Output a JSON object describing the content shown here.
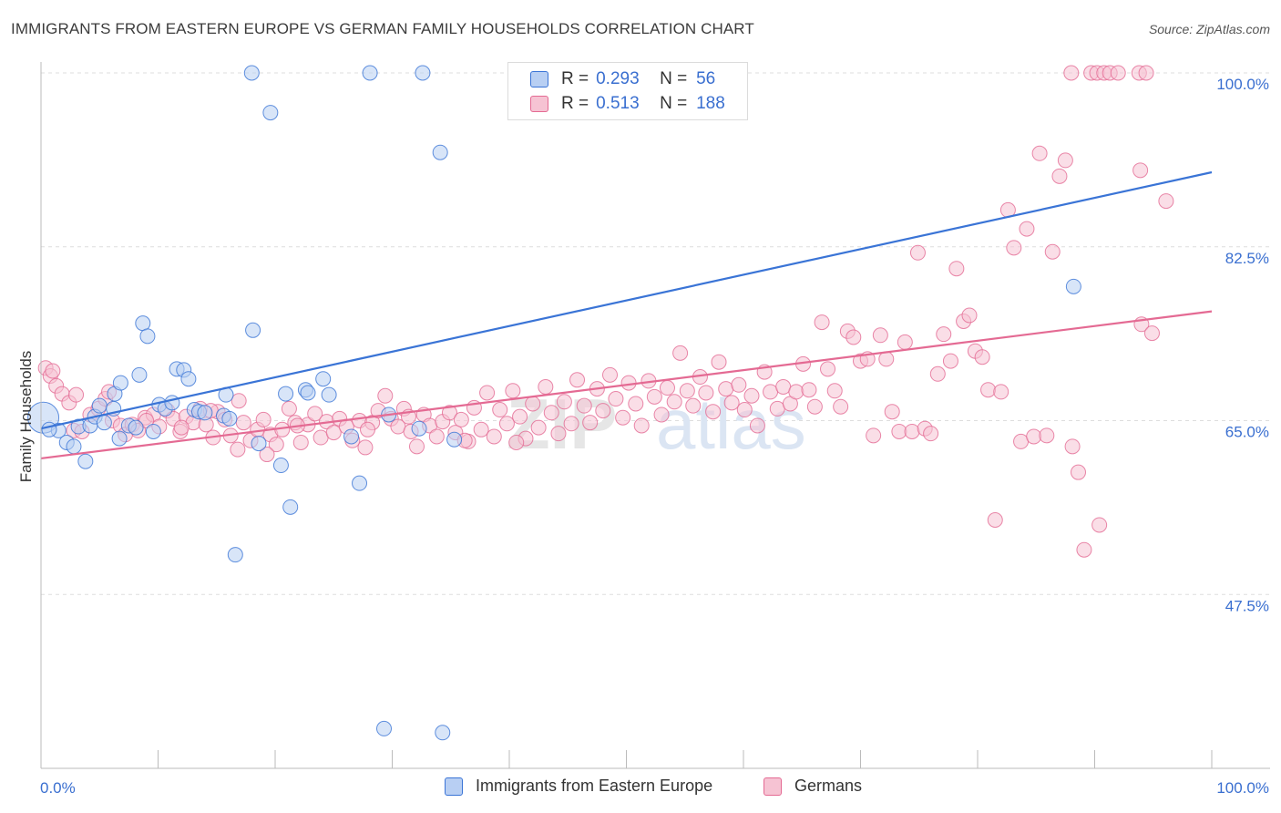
{
  "title": "IMMIGRANTS FROM EASTERN EUROPE VS GERMAN FAMILY HOUSEHOLDS CORRELATION CHART",
  "source": "Source: ZipAtlas.com",
  "colors": {
    "blue": "#3a74d6",
    "pink": "#e46a93",
    "blue_fill": "#b8cff3",
    "pink_fill": "#f6c3d3",
    "tick_label": "#3a6fd0"
  },
  "legend_top": {
    "rows": [
      {
        "r_label": "R =",
        "r_value": "0.293",
        "n_label": "N =",
        "n_value": "56"
      },
      {
        "r_label": "R =",
        "r_value": "0.513",
        "n_label": "N =",
        "n_value": "188"
      }
    ]
  },
  "legend_bottom": [
    "Immigrants from Eastern Europe",
    "Germans"
  ],
  "chart_data": {
    "type": "scatter",
    "title": "IMMIGRANTS FROM EASTERN EUROPE VS GERMAN FAMILY HOUSEHOLDS CORRELATION CHART",
    "xlabel": "",
    "ylabel": "Family Households",
    "xlim": [
      0,
      100
    ],
    "ylim": [
      30,
      102
    ],
    "x_tick_labels": [
      "0.0%",
      "100.0%"
    ],
    "y_ticks": [
      47.5,
      65.0,
      82.5,
      100.0
    ],
    "y_tick_labels": [
      "47.5%",
      "65.0%",
      "82.5%",
      "100.0%"
    ],
    "watermark": "ZIPatlas",
    "series": [
      {
        "name": "Immigrants from Eastern Europe",
        "r": 0.293,
        "n": 56,
        "trend": {
          "x": [
            0,
            100
          ],
          "y": [
            64.2,
            90.0
          ]
        },
        "points": [
          [
            0.2,
            65.3
          ],
          [
            1.5,
            64.0
          ],
          [
            2.2,
            62.8
          ],
          [
            2.8,
            62.4
          ],
          [
            3.2,
            64.4
          ],
          [
            3.8,
            60.9
          ],
          [
            4.2,
            64.5
          ],
          [
            4.6,
            65.4
          ],
          [
            5.0,
            66.5
          ],
          [
            5.4,
            64.8
          ],
          [
            6.2,
            66.2
          ],
          [
            6.3,
            67.7
          ],
          [
            6.7,
            63.2
          ],
          [
            6.8,
            68.8
          ],
          [
            7.5,
            64.5
          ],
          [
            8.1,
            64.3
          ],
          [
            8.4,
            69.6
          ],
          [
            8.7,
            74.8
          ],
          [
            9.1,
            73.5
          ],
          [
            9.6,
            63.9
          ],
          [
            10.1,
            66.6
          ],
          [
            10.6,
            66.2
          ],
          [
            11.2,
            66.8
          ],
          [
            11.6,
            70.2
          ],
          [
            12.2,
            70.1
          ],
          [
            12.6,
            69.2
          ],
          [
            13.1,
            66.1
          ],
          [
            13.5,
            65.9
          ],
          [
            14.0,
            65.8
          ],
          [
            15.6,
            65.5
          ],
          [
            15.8,
            67.6
          ],
          [
            16.1,
            65.2
          ],
          [
            16.6,
            51.5
          ],
          [
            18.0,
            100.0
          ],
          [
            18.1,
            74.1
          ],
          [
            18.6,
            62.7
          ],
          [
            19.6,
            96.0
          ],
          [
            20.5,
            60.5
          ],
          [
            20.9,
            67.7
          ],
          [
            21.3,
            56.3
          ],
          [
            22.6,
            68.1
          ],
          [
            22.8,
            67.8
          ],
          [
            24.1,
            69.2
          ],
          [
            24.6,
            67.6
          ],
          [
            26.5,
            63.4
          ],
          [
            27.2,
            58.7
          ],
          [
            28.1,
            100.0
          ],
          [
            29.3,
            34.0
          ],
          [
            29.7,
            65.6
          ],
          [
            32.6,
            100.0
          ],
          [
            32.3,
            64.2
          ],
          [
            34.1,
            92.0
          ],
          [
            34.3,
            33.6
          ],
          [
            35.3,
            63.1
          ],
          [
            88.2,
            78.5
          ],
          [
            0.7,
            64.1
          ]
        ]
      },
      {
        "name": "Germans",
        "r": 0.513,
        "n": 188,
        "trend": {
          "x": [
            0,
            100
          ],
          "y": [
            61.2,
            76.0
          ]
        },
        "points": [
          [
            0.4,
            70.3
          ],
          [
            0.8,
            69.5
          ],
          [
            1.3,
            68.5
          ],
          [
            1.8,
            67.7
          ],
          [
            2.4,
            66.8
          ],
          [
            2.8,
            64.0
          ],
          [
            3.5,
            63.9
          ],
          [
            4.2,
            65.6
          ],
          [
            4.9,
            66.2
          ],
          [
            5.5,
            67.2
          ],
          [
            6.1,
            65.0
          ],
          [
            6.8,
            64.5
          ],
          [
            7.2,
            63.6
          ],
          [
            7.8,
            64.6
          ],
          [
            8.3,
            64.0
          ],
          [
            8.9,
            65.3
          ],
          [
            9.6,
            65.6
          ],
          [
            10.1,
            64.4
          ],
          [
            10.8,
            66.0
          ],
          [
            11.3,
            65.2
          ],
          [
            11.9,
            63.9
          ],
          [
            12.4,
            65.4
          ],
          [
            13.0,
            64.8
          ],
          [
            13.6,
            66.2
          ],
          [
            14.1,
            64.6
          ],
          [
            14.7,
            63.3
          ],
          [
            15.1,
            65.9
          ],
          [
            15.7,
            65.1
          ],
          [
            16.2,
            63.5
          ],
          [
            16.8,
            62.1
          ],
          [
            17.3,
            64.8
          ],
          [
            17.9,
            63.0
          ],
          [
            18.5,
            64.1
          ],
          [
            19.0,
            65.1
          ],
          [
            19.6,
            63.6
          ],
          [
            20.1,
            62.6
          ],
          [
            20.6,
            64.1
          ],
          [
            21.2,
            66.2
          ],
          [
            21.7,
            64.8
          ],
          [
            22.2,
            62.8
          ],
          [
            22.8,
            64.6
          ],
          [
            23.4,
            65.7
          ],
          [
            23.9,
            63.3
          ],
          [
            24.4,
            64.9
          ],
          [
            25.0,
            63.8
          ],
          [
            25.5,
            65.2
          ],
          [
            26.1,
            64.4
          ],
          [
            26.6,
            63.0
          ],
          [
            27.2,
            65.0
          ],
          [
            27.7,
            62.3
          ],
          [
            28.3,
            64.8
          ],
          [
            28.8,
            66.0
          ],
          [
            29.4,
            67.5
          ],
          [
            29.9,
            65.2
          ],
          [
            30.5,
            64.4
          ],
          [
            31.0,
            66.2
          ],
          [
            31.6,
            63.9
          ],
          [
            32.1,
            62.4
          ],
          [
            32.7,
            65.6
          ],
          [
            33.2,
            64.5
          ],
          [
            33.8,
            63.4
          ],
          [
            34.3,
            64.9
          ],
          [
            34.9,
            65.8
          ],
          [
            35.4,
            63.8
          ],
          [
            35.9,
            65.1
          ],
          [
            36.5,
            62.9
          ],
          [
            37.0,
            66.3
          ],
          [
            37.6,
            64.1
          ],
          [
            38.1,
            67.8
          ],
          [
            38.7,
            63.4
          ],
          [
            39.2,
            66.1
          ],
          [
            39.8,
            64.7
          ],
          [
            40.3,
            68.0
          ],
          [
            40.9,
            65.4
          ],
          [
            41.4,
            63.2
          ],
          [
            42.0,
            66.7
          ],
          [
            42.5,
            64.3
          ],
          [
            43.1,
            68.4
          ],
          [
            43.6,
            65.8
          ],
          [
            44.2,
            63.7
          ],
          [
            44.7,
            66.9
          ],
          [
            45.3,
            64.7
          ],
          [
            45.8,
            69.1
          ],
          [
            46.4,
            66.5
          ],
          [
            46.9,
            64.8
          ],
          [
            47.5,
            68.2
          ],
          [
            48.0,
            66.0
          ],
          [
            48.6,
            69.6
          ],
          [
            49.1,
            67.2
          ],
          [
            49.7,
            65.3
          ],
          [
            50.2,
            68.8
          ],
          [
            50.8,
            66.7
          ],
          [
            51.3,
            64.5
          ],
          [
            51.9,
            69.0
          ],
          [
            52.4,
            67.4
          ],
          [
            53.0,
            65.6
          ],
          [
            53.5,
            68.3
          ],
          [
            54.1,
            66.9
          ],
          [
            54.6,
            71.8
          ],
          [
            55.2,
            68.0
          ],
          [
            55.7,
            66.5
          ],
          [
            56.3,
            69.4
          ],
          [
            56.8,
            67.8
          ],
          [
            57.4,
            65.9
          ],
          [
            57.9,
            70.9
          ],
          [
            58.5,
            68.2
          ],
          [
            59.0,
            66.8
          ],
          [
            59.6,
            68.6
          ],
          [
            60.1,
            66.1
          ],
          [
            60.7,
            67.5
          ],
          [
            61.2,
            64.5
          ],
          [
            61.8,
            69.9
          ],
          [
            62.3,
            67.9
          ],
          [
            62.9,
            66.2
          ],
          [
            63.4,
            68.4
          ],
          [
            64.0,
            66.7
          ],
          [
            64.5,
            67.9
          ],
          [
            65.1,
            70.7
          ],
          [
            65.6,
            68.1
          ],
          [
            66.1,
            66.4
          ],
          [
            66.7,
            74.9
          ],
          [
            67.2,
            70.2
          ],
          [
            67.8,
            68.0
          ],
          [
            68.3,
            66.4
          ],
          [
            68.9,
            74.0
          ],
          [
            69.4,
            73.4
          ],
          [
            70.0,
            71.0
          ],
          [
            70.6,
            71.2
          ],
          [
            71.1,
            63.5
          ],
          [
            71.7,
            73.6
          ],
          [
            72.2,
            71.2
          ],
          [
            72.7,
            65.9
          ],
          [
            73.3,
            63.9
          ],
          [
            73.8,
            72.9
          ],
          [
            74.4,
            63.9
          ],
          [
            74.9,
            81.9
          ],
          [
            75.5,
            64.2
          ],
          [
            76.0,
            63.7
          ],
          [
            76.6,
            69.7
          ],
          [
            77.1,
            73.7
          ],
          [
            77.7,
            71.0
          ],
          [
            78.2,
            80.3
          ],
          [
            78.8,
            75.0
          ],
          [
            79.3,
            75.6
          ],
          [
            79.8,
            72.0
          ],
          [
            80.4,
            71.4
          ],
          [
            80.9,
            68.1
          ],
          [
            81.5,
            55.0
          ],
          [
            82.0,
            67.9
          ],
          [
            82.6,
            86.2
          ],
          [
            83.1,
            82.4
          ],
          [
            83.7,
            62.9
          ],
          [
            84.2,
            84.3
          ],
          [
            84.8,
            63.4
          ],
          [
            85.3,
            91.9
          ],
          [
            85.9,
            63.5
          ],
          [
            86.4,
            82.0
          ],
          [
            87.0,
            89.6
          ],
          [
            87.5,
            91.2
          ],
          [
            88.0,
            100.0
          ],
          [
            88.6,
            59.8
          ],
          [
            89.1,
            52.0
          ],
          [
            89.7,
            100.0
          ],
          [
            90.2,
            100.0
          ],
          [
            90.8,
            100.0
          ],
          [
            91.3,
            100.0
          ],
          [
            92.0,
            100.0
          ],
          [
            93.8,
            100.0
          ],
          [
            94.4,
            100.0
          ],
          [
            94.0,
            74.7
          ],
          [
            94.9,
            73.8
          ],
          [
            93.9,
            90.2
          ],
          [
            96.1,
            87.1
          ],
          [
            1.0,
            70.0
          ],
          [
            3.0,
            67.6
          ],
          [
            5.8,
            67.9
          ],
          [
            9.0,
            65.0
          ],
          [
            12.0,
            64.3
          ],
          [
            14.5,
            66.0
          ],
          [
            16.9,
            67.0
          ],
          [
            19.3,
            61.6
          ],
          [
            21.9,
            64.5
          ],
          [
            90.4,
            54.5
          ],
          [
            88.1,
            62.4
          ],
          [
            27.9,
            64.1
          ],
          [
            31.4,
            65.4
          ],
          [
            36.2,
            63.0
          ],
          [
            40.6,
            62.8
          ]
        ]
      }
    ]
  }
}
